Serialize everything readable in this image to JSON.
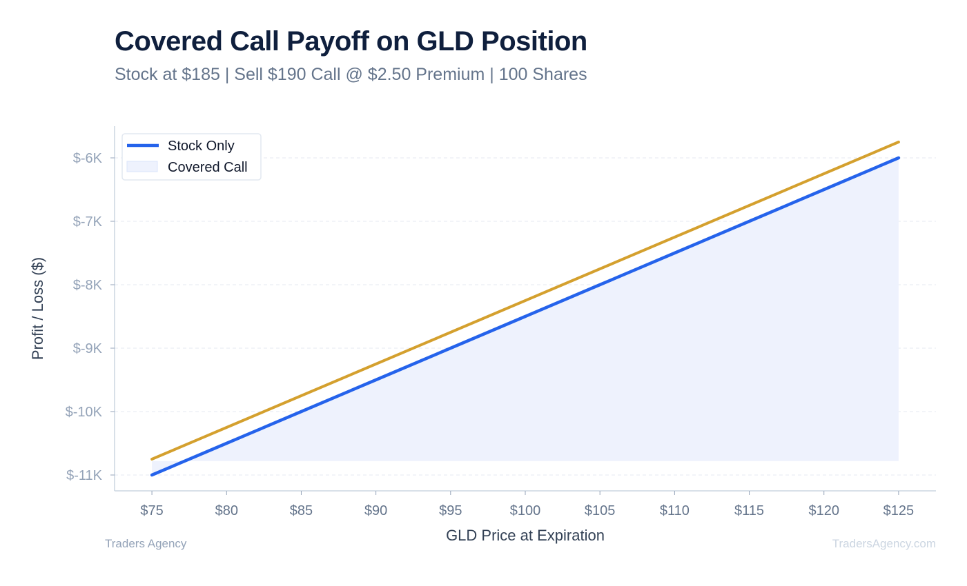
{
  "header": {
    "title": "Covered Call Payoff on GLD Position",
    "subtitle": "Stock at $185 | Sell $190 Call @ $2.50 Premium | 100 Shares"
  },
  "footer": {
    "left_text": "Traders Agency",
    "right_text": "TradersAgency.com"
  },
  "chart_data": {
    "type": "line",
    "xlabel": "GLD Price at Expiration",
    "ylabel": "Profit / Loss ($)",
    "x_ticks": [
      "$75",
      "$80",
      "$85",
      "$90",
      "$95",
      "$100",
      "$105",
      "$110",
      "$115",
      "$120",
      "$125"
    ],
    "y_ticks": [
      "$-6K",
      "$-7K",
      "$-8K",
      "$-9K",
      "$-10K",
      "$-11K"
    ],
    "y_tick_values": [
      -6000,
      -7000,
      -8000,
      -9000,
      -10000,
      -11000
    ],
    "xlim": [
      72.5,
      127.5
    ],
    "ylim": [
      -11250,
      -5500
    ],
    "grid": "horizontal-dashed",
    "legend_position": "top-left",
    "x": [
      75,
      80,
      85,
      90,
      95,
      100,
      105,
      110,
      115,
      120,
      125
    ],
    "series": [
      {
        "name": "Stock Only",
        "style": "line",
        "color": "#2563eb",
        "values": [
          -11000,
          -10500,
          -10000,
          -9500,
          -9000,
          -8500,
          -8000,
          -7500,
          -7000,
          -6500,
          -6000
        ]
      },
      {
        "name": "Covered Call",
        "style": "filled-area",
        "color": "#dbe4fb",
        "values": [
          -10750,
          -10250,
          -9750,
          -9250,
          -8750,
          -8250,
          -7750,
          -7250,
          -6750,
          -6250,
          -5750
        ]
      }
    ],
    "area_fill_baseline": -10780,
    "line_colors": {
      "stock_only": "#2563eb",
      "covered_call": "#d4a02e",
      "area_fill": "#eef2fd"
    }
  }
}
